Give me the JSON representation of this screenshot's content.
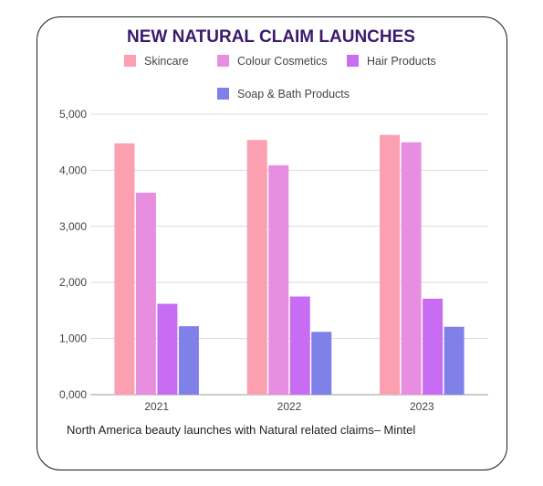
{
  "chart_data": {
    "type": "bar",
    "title": "NEW NATURAL CLAIM LAUNCHES",
    "categories": [
      "2021",
      "2022",
      "2023"
    ],
    "series": [
      {
        "name": "Skincare",
        "color": "#fb9fb1",
        "values": [
          4480,
          4540,
          4630
        ]
      },
      {
        "name": "Colour Cosmetics",
        "color": "#e88ee0",
        "values": [
          3600,
          4090,
          4500
        ]
      },
      {
        "name": "Hair Products",
        "color": "#c86cf3",
        "values": [
          1620,
          1750,
          1710
        ]
      },
      {
        "name": "Soap & Bath Products",
        "color": "#7f80e8",
        "values": [
          1220,
          1120,
          1210
        ]
      }
    ],
    "yticks": [
      "0,000",
      "1,000",
      "2,000",
      "3,000",
      "4,000",
      "5,000"
    ],
    "ylim": [
      0,
      5000
    ],
    "grid": true,
    "legend_position": "top"
  },
  "caption": "North America beauty launches with Natural related claims– Mintel"
}
